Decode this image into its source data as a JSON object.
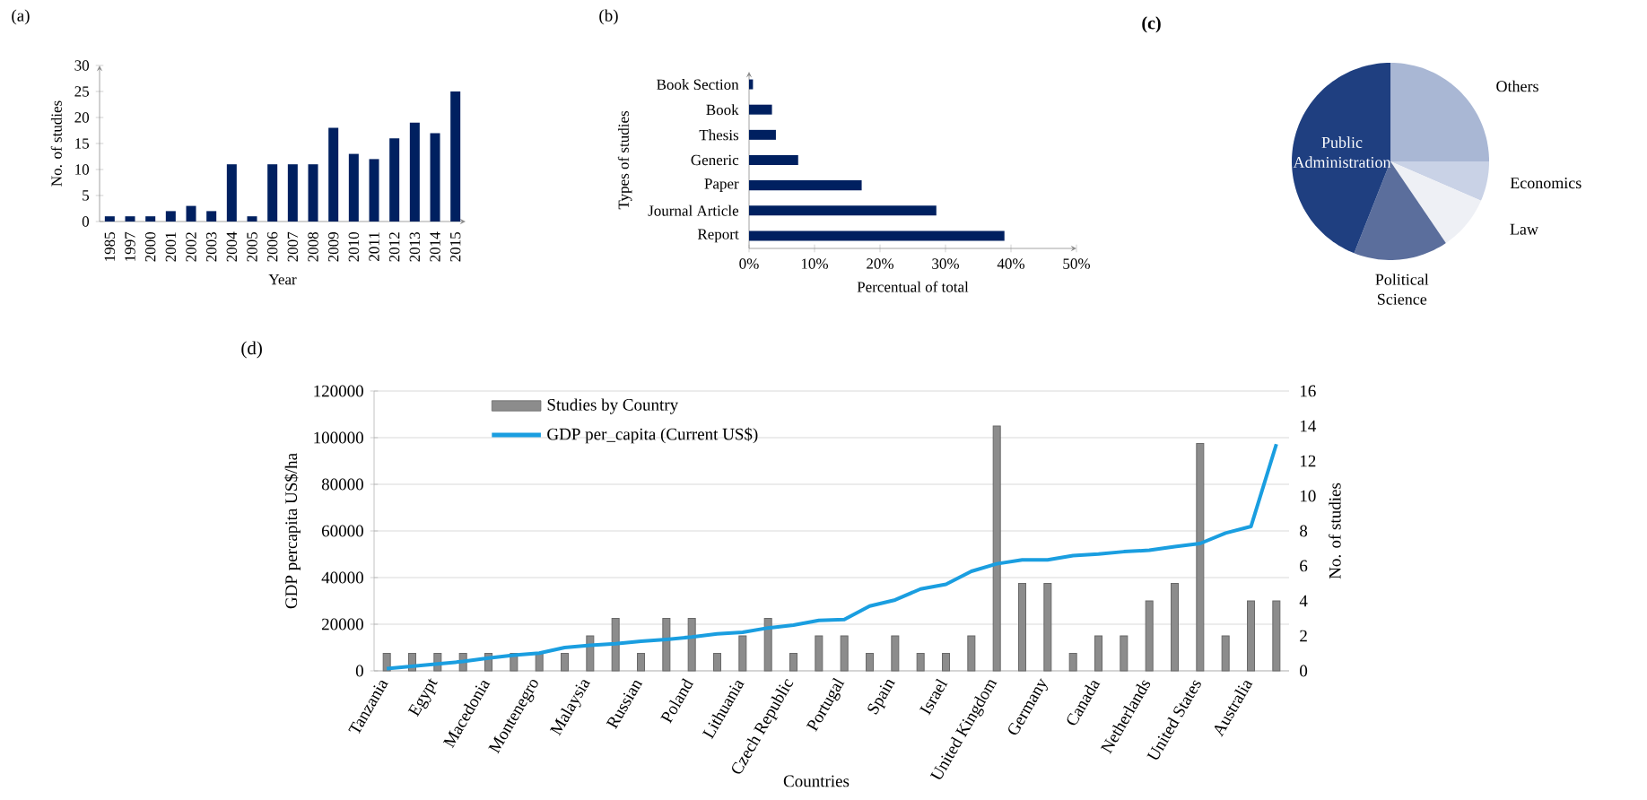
{
  "chart_data": [
    {
      "type": "bar",
      "title": "(a)",
      "xlabel": "Year",
      "ylabel": "No. of studies",
      "categories": [
        "1985",
        "1997",
        "2000",
        "2001",
        "2002",
        "2003",
        "2004",
        "2005",
        "2006",
        "2007",
        "2008",
        "2009",
        "2010",
        "2011",
        "2012",
        "2013",
        "2014",
        "2015"
      ],
      "values": [
        1,
        1,
        1,
        2,
        3,
        2,
        11,
        1,
        11,
        11,
        11,
        18,
        13,
        12,
        16,
        19,
        17,
        25
      ],
      "color": "#002060",
      "ylim": [
        0,
        30
      ],
      "yticks": [
        0,
        5,
        10,
        15,
        20,
        25,
        30
      ]
    },
    {
      "type": "bar",
      "orientation": "horizontal",
      "title": "(b)",
      "xlabel": "Percentual of total",
      "ylabel": "Types of studies",
      "categories": [
        "Book Section",
        "Book",
        "Thesis",
        "Generic",
        "Paper",
        "Journal Article",
        "Report"
      ],
      "values": [
        0.6,
        3.5,
        4.1,
        7.5,
        17.2,
        28.6,
        39
      ],
      "color": "#002060",
      "xlim": [
        0,
        50
      ],
      "xticks": [
        {
          "value": 0,
          "label": "0%"
        },
        {
          "value": 10,
          "label": "10%"
        },
        {
          "value": 20,
          "label": "20%"
        },
        {
          "value": 30,
          "label": "30%"
        },
        {
          "value": 40,
          "label": "40%"
        },
        {
          "value": 50,
          "label": "50%"
        }
      ]
    },
    {
      "type": "pie",
      "title": "(c)",
      "categories": [
        "Others",
        "Economics",
        "Law",
        "Political Science",
        "Public Administration"
      ],
      "values": [
        25,
        6.5,
        9,
        15.5,
        44
      ],
      "colors": [
        "#a9b7d4",
        "#c9d2e6",
        "#eef0f5",
        "#5b6e9c",
        "#1f3f80"
      ]
    },
    {
      "type": "bar",
      "title": "(d)",
      "xlabel": "Countries",
      "ylabel": "GDP percapita US$/ha",
      "y2label": "No. of studies",
      "categories": [
        "Tanzania",
        null,
        "Egypt",
        null,
        "Macedonia",
        null,
        "Montenegro",
        null,
        "Malaysia",
        null,
        "Russian",
        null,
        "Poland",
        null,
        "Lithuania",
        null,
        "Czech Republic",
        null,
        "Portugal",
        null,
        "Spain",
        null,
        "Israel",
        null,
        "United Kingdom",
        null,
        "Germany",
        null,
        "Canada",
        null,
        "Netherlands",
        null,
        "United States",
        null,
        "Australia",
        null
      ],
      "series": [
        {
          "name": "Studies by Country",
          "type": "bar",
          "axis": "y2",
          "color": "#8c8c8c",
          "values": [
            1,
            1,
            1,
            1,
            1,
            1,
            1,
            1,
            2,
            3,
            1,
            3,
            3,
            1,
            2,
            3,
            1,
            2,
            2,
            1,
            2,
            1,
            1,
            2,
            14,
            5,
            5,
            1,
            2,
            2,
            4,
            5,
            13,
            2,
            4,
            4
          ]
        },
        {
          "name": "GDP per_capita (Current US$)",
          "type": "line",
          "color": "#1a9ee0",
          "values": [
            1000,
            2000,
            3000,
            4000,
            5500,
            6700,
            7600,
            10000,
            11000,
            11600,
            12700,
            13500,
            14500,
            15900,
            16500,
            18400,
            19600,
            21600,
            22000,
            27800,
            30400,
            35100,
            37100,
            42700,
            45900,
            47600,
            47600,
            49400,
            50100,
            51100,
            51700,
            53300,
            54600,
            59100,
            61900,
            97200
          ]
        }
      ],
      "ylim": [
        0,
        120000
      ],
      "yticks": [
        0,
        20000,
        40000,
        60000,
        80000,
        100000,
        120000
      ],
      "y2lim": [
        0,
        16
      ],
      "y2ticks": [
        0,
        2,
        4,
        6,
        8,
        10,
        12,
        14,
        16
      ],
      "grid": "y",
      "legend": "top left"
    }
  ]
}
